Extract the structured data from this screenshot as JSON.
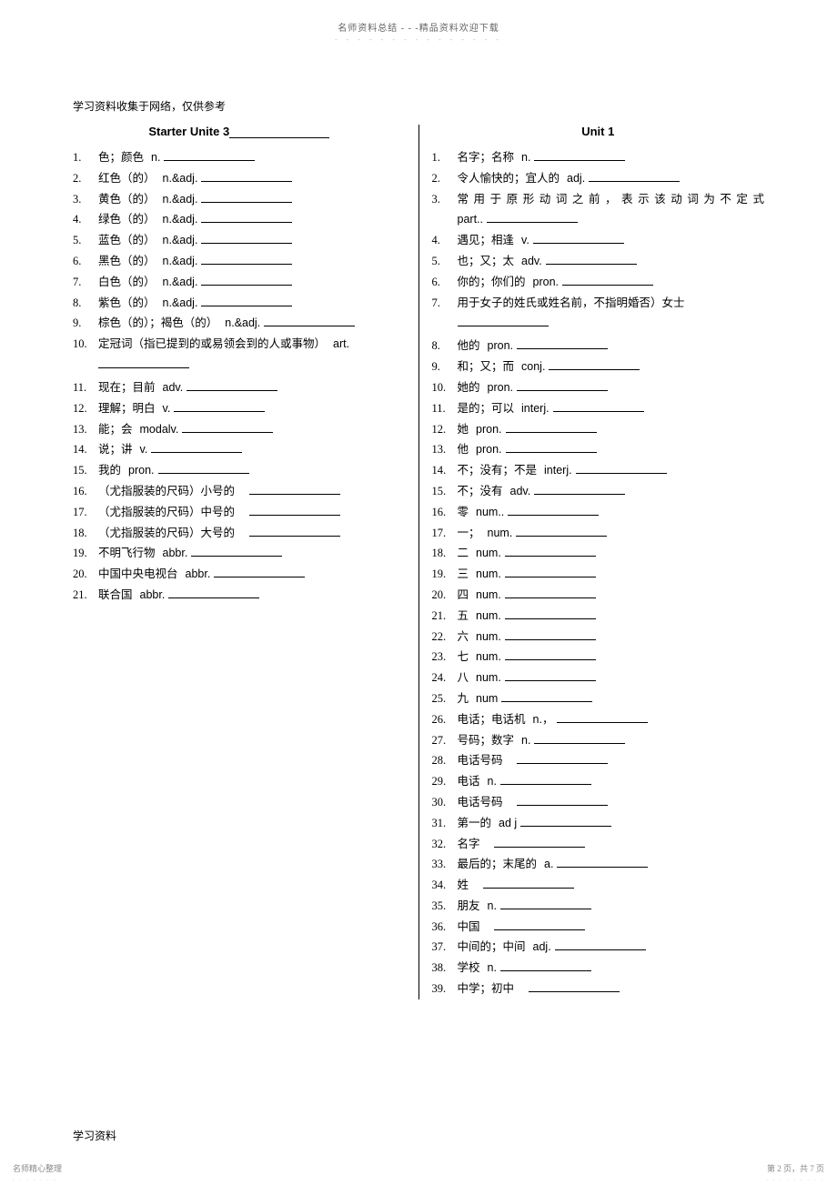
{
  "header": {
    "main": "名师资料总结 - - -精品资料欢迎下载",
    "sub": "- - - - - - - - - - - - - - -"
  },
  "source_note": "学习资料收集于网络，仅供参考",
  "left": {
    "title_prefix": "Starter   Unite   3",
    "items": [
      {
        "n": "1.",
        "t": "色；颜色",
        "p": "n."
      },
      {
        "n": "2.",
        "t": "红色（的）",
        "p": "n.&adj."
      },
      {
        "n": "3.",
        "t": "黄色（的）",
        "p": "n.&adj."
      },
      {
        "n": "4.",
        "t": "绿色（的）",
        "p": "n.&adj."
      },
      {
        "n": "5.",
        "t": "蓝色（的）",
        "p": "n.&adj."
      },
      {
        "n": "6.",
        "t": "黑色（的）",
        "p": "n.&adj."
      },
      {
        "n": "7.",
        "t": "白色（的）",
        "p": "n.&adj."
      },
      {
        "n": "8.",
        "t": "紫色（的）",
        "p": "n.&adj."
      },
      {
        "n": "9.",
        "t": "棕色（的）；褐色（的）",
        "p": "n.&adj."
      },
      {
        "n": "10.",
        "t": "定冠词（指已提到的或易领会到的人或事物）",
        "p": "art.",
        "nextline": true
      },
      {
        "n": "11.",
        "t": "现在；目前",
        "p": "adv."
      },
      {
        "n": "12.",
        "t": "理解；明白",
        "p": "v."
      },
      {
        "n": "13.",
        "t": "能；会",
        "p": "modalv."
      },
      {
        "n": "14.",
        "t": "说；讲",
        "p": "v."
      },
      {
        "n": "15.",
        "t": "我的",
        "p": "pron."
      },
      {
        "n": "16.",
        "t": "（尤指服装的尺码）小号的",
        "p": ""
      },
      {
        "n": "17.",
        "t": "（尤指服装的尺码）中号的",
        "p": ""
      },
      {
        "n": "18.",
        "t": "（尤指服装的尺码）大号的",
        "p": ""
      },
      {
        "n": "19.",
        "t": "不明飞行物",
        "p": "abbr."
      },
      {
        "n": "20.",
        "t": "中国中央电视台",
        "p": "abbr."
      },
      {
        "n": "21.",
        "t": "联合国",
        "p": "abbr."
      }
    ]
  },
  "right": {
    "title": "Unit 1",
    "items": [
      {
        "n": "1.",
        "t": "名字；名称",
        "p": "n."
      },
      {
        "n": "2.",
        "t": "令人愉快的；宜人的",
        "p": "adj."
      },
      {
        "n": "3.",
        "t": "常用于原形动词之前，表示该动词为不定式",
        "p": "",
        "justified": true,
        "continue": "part.."
      },
      {
        "n": "4.",
        "t": "遇见；相逢",
        "p": "v."
      },
      {
        "n": "5.",
        "t": "也；又；太",
        "p": "adv."
      },
      {
        "n": "6.",
        "t": "你的；你们的",
        "p": "pron."
      },
      {
        "n": "7.",
        "t": "用于女子的姓氏或姓名前，不指明婚否）女士",
        "p": "",
        "nextline": true
      },
      {
        "n": "8.",
        "t": "他的",
        "p": "pron."
      },
      {
        "n": "9.",
        "t": "和；又；而",
        "p": "conj."
      },
      {
        "n": "10.",
        "t": "她的",
        "p": "pron."
      },
      {
        "n": "11.",
        "t": "是的；可以",
        "p": "interj."
      },
      {
        "n": "12.",
        "t": "她",
        "p": "pron."
      },
      {
        "n": "13.",
        "t": "他",
        "p": "pron."
      },
      {
        "n": "14.",
        "t": "不；没有；不是",
        "p": "interj."
      },
      {
        "n": "15.",
        "t": "不；没有",
        "p": "adv."
      },
      {
        "n": "16.",
        "t": "零",
        "p": "num.."
      },
      {
        "n": "17.",
        "t": "一；",
        "p": "num."
      },
      {
        "n": "18.",
        "t": "二",
        "p": "num."
      },
      {
        "n": "19.",
        "t": "三",
        "p": "num."
      },
      {
        "n": "20.",
        "t": "四",
        "p": "num."
      },
      {
        "n": "21.",
        "t": "五",
        "p": "num."
      },
      {
        "n": "22.",
        "t": "六",
        "p": "num."
      },
      {
        "n": "23.",
        "t": "七",
        "p": "num."
      },
      {
        "n": "24.",
        "t": "八",
        "p": "num."
      },
      {
        "n": "25.",
        "t": "九",
        "p": "num"
      },
      {
        "n": "26.",
        "t": "电话；电话机",
        "p": "n.，"
      },
      {
        "n": "27.",
        "t": "号码；数字",
        "p": "n."
      },
      {
        "n": "28.",
        "t": "电话号码",
        "p": ""
      },
      {
        "n": "29.",
        "t": "电话",
        "p": "n."
      },
      {
        "n": "30.",
        "t": "电话号码",
        "p": ""
      },
      {
        "n": "31.",
        "t": "第一的",
        "p": "ad j"
      },
      {
        "n": "32.",
        "t": "名字",
        "p": ""
      },
      {
        "n": "33.",
        "t": "最后的；末尾的",
        "p": "a."
      },
      {
        "n": "34.",
        "t": "姓",
        "p": ""
      },
      {
        "n": "35.",
        "t": "朋友",
        "p": "n."
      },
      {
        "n": "36.",
        "t": "中国",
        "p": ""
      },
      {
        "n": "37.",
        "t": "中间的；中间",
        "p": "adj."
      },
      {
        "n": "38.",
        "t": "学校",
        "p": "n."
      },
      {
        "n": "39.",
        "t": "中学；初中",
        "p": ""
      }
    ]
  },
  "footer": {
    "left": "学习资料",
    "bl": "名师精心整理",
    "bl_sub": ". . . . . . .",
    "br": "第 2 页，共 7 页",
    "br_sub": ". . . . . . . . ."
  }
}
